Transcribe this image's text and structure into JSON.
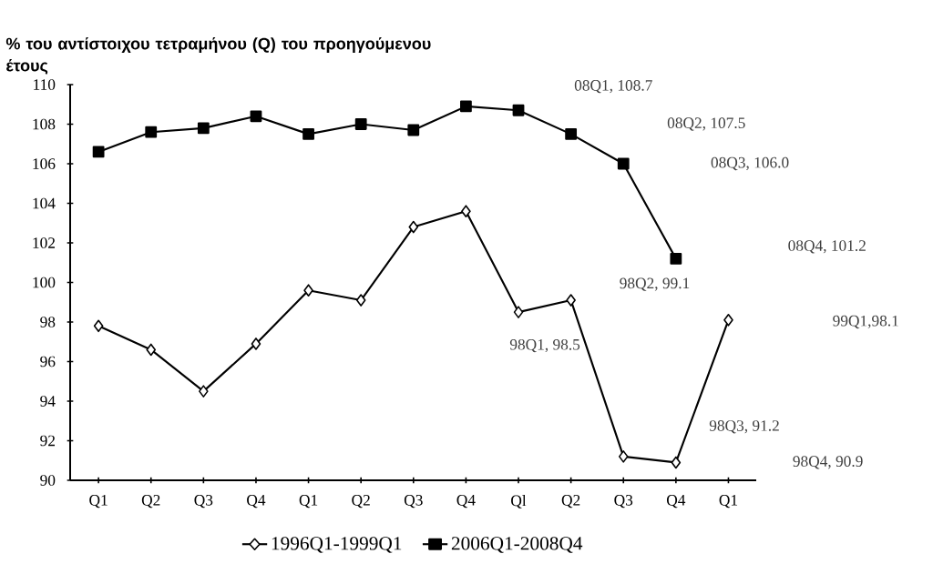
{
  "chart_data": {
    "type": "line",
    "ylabel": "% του αντίστοιχου τετραμήνου (Q) του προηγούμενου έτους",
    "categories": [
      "Q1",
      "Q2",
      "Q3",
      "Q4",
      "Q1",
      "Q2",
      "Q3",
      "Q4",
      "Ql",
      "Q2",
      "Q3",
      "Q4",
      "Q1"
    ],
    "series": [
      {
        "name": "1996Q1-1999Q1",
        "color": "#000000",
        "marker": "diamond",
        "values": [
          97.8,
          96.6,
          94.5,
          96.9,
          99.6,
          99.1,
          102.8,
          103.6,
          98.5,
          99.1,
          91.2,
          90.9,
          98.1
        ]
      },
      {
        "name": "2006Q1-2008Q4",
        "color": "#000000",
        "marker": "square",
        "values": [
          106.6,
          107.6,
          107.8,
          108.4,
          107.5,
          108.0,
          107.7,
          108.9,
          108.7,
          107.5,
          106.0,
          101.2,
          null
        ]
      }
    ],
    "ylim": [
      90,
      110
    ],
    "yticks": [
      90,
      92,
      94,
      96,
      98,
      100,
      102,
      104,
      106,
      108,
      110
    ],
    "annotations": [
      "08Q1, 108.7",
      "08Q2, 107.5",
      "08Q3, 106.0",
      "08Q4, 101.2",
      "98Q2, 99.1",
      "99Q1,98.1",
      "98Q1, 98.5",
      "98Q3, 91.2",
      "98Q4, 90.9"
    ],
    "legend": "bottom",
    "grid": false
  }
}
